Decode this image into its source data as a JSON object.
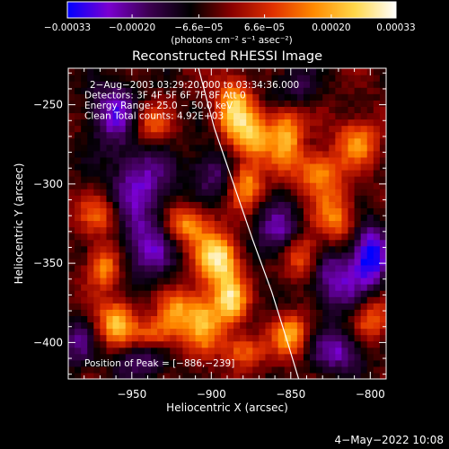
{
  "chart_data": {
    "type": "heatmap",
    "title": "Reconstructed RHESSI Image",
    "xlabel": "Heliocentric X (arcsec)",
    "ylabel": "Heliocentric Y (arcsec)",
    "xlim": [
      -990,
      -790
    ],
    "ylim": [
      -423,
      -227
    ],
    "x_ticks": [
      -950,
      -900,
      -850,
      -800
    ],
    "x_tick_labels": [
      "−950",
      "−900",
      "−850",
      "−800"
    ],
    "y_ticks": [
      -250,
      -300,
      -350,
      -400
    ],
    "y_tick_labels": [
      "−250",
      "−300",
      "−350",
      "−400"
    ],
    "colorbar": {
      "range": [
        -0.00033,
        0.00033
      ],
      "ticks": [
        -0.00033,
        -0.0002,
        -6.6e-05,
        6.6e-05,
        0.0002,
        0.00033
      ],
      "tick_labels": [
        "−0.00033",
        "−0.00020",
        "−6.6e−05",
        "6.6e−05",
        "0.00020",
        "0.00033"
      ],
      "unit_label": "(photons cm⁻² s⁻¹ asec⁻²)",
      "colors": [
        "#0000ff",
        "#7a00d0",
        "#3c0050",
        "#000000",
        "#8a0000",
        "#e03000",
        "#ff8a00",
        "#ffd84a",
        "#ffffff"
      ]
    },
    "annotations": [
      "2−Aug−2003 03:29:20.000 to 03:34:36.000",
      "Detectors: 3F 4F 5F 6F 7F 8F  Att 0",
      "Energy Range: 25.0 − 50.0 keV",
      "Clean     Total counts: 4.92E+03"
    ],
    "peak_label": "Position of Peak = [−886,−239]",
    "peak": [
      -886,
      -239
    ],
    "limb_curve": {
      "x": [
        -908,
        -898,
        -886,
        -874,
        -862,
        -852,
        -845
      ],
      "y": [
        -227,
        -265,
        -300,
        -335,
        -368,
        -400,
        -423
      ]
    },
    "sources": [
      {
        "x": -896,
        "y": -346,
        "amp": 1.0,
        "sx": 9,
        "sy": 10
      },
      {
        "x": -888,
        "y": -372,
        "amp": 0.85,
        "sx": 7,
        "sy": 12
      },
      {
        "x": -905,
        "y": -385,
        "amp": 0.75,
        "sx": 8,
        "sy": 14
      },
      {
        "x": -915,
        "y": -325,
        "amp": 0.7,
        "sx": 10,
        "sy": 9
      },
      {
        "x": -886,
        "y": -252,
        "amp": 0.8,
        "sx": 8,
        "sy": 14
      },
      {
        "x": -878,
        "y": -300,
        "amp": 0.65,
        "sx": 7,
        "sy": 10
      },
      {
        "x": -872,
        "y": -270,
        "amp": 0.75,
        "sx": 9,
        "sy": 11
      },
      {
        "x": -852,
        "y": -268,
        "amp": 0.7,
        "sx": 7,
        "sy": 16
      },
      {
        "x": -832,
        "y": -292,
        "amp": 0.7,
        "sx": 9,
        "sy": 9
      },
      {
        "x": -822,
        "y": -320,
        "amp": 0.6,
        "sx": 9,
        "sy": 12
      },
      {
        "x": -808,
        "y": -273,
        "amp": 0.65,
        "sx": 9,
        "sy": 10
      },
      {
        "x": -843,
        "y": -345,
        "amp": 0.6,
        "sx": 8,
        "sy": 10
      },
      {
        "x": -850,
        "y": -395,
        "amp": 0.7,
        "sx": 8,
        "sy": 9
      },
      {
        "x": -968,
        "y": -352,
        "amp": 0.65,
        "sx": 7,
        "sy": 9
      },
      {
        "x": -960,
        "y": -387,
        "amp": 0.8,
        "sx": 8,
        "sy": 10
      },
      {
        "x": -935,
        "y": -395,
        "amp": 0.55,
        "sx": 10,
        "sy": 8
      },
      {
        "x": -940,
        "y": -262,
        "amp": 0.55,
        "sx": 9,
        "sy": 10
      },
      {
        "x": -970,
        "y": -320,
        "amp": 0.5,
        "sx": 9,
        "sy": 9
      },
      {
        "x": -922,
        "y": -380,
        "amp": 0.6,
        "sx": 7,
        "sy": 9
      },
      {
        "x": -880,
        "y": -405,
        "amp": 0.55,
        "sx": 9,
        "sy": 7
      },
      {
        "x": -800,
        "y": -385,
        "amp": 0.5,
        "sx": 8,
        "sy": 10
      },
      {
        "x": -945,
        "y": -300,
        "amp": -0.6,
        "sx": 14,
        "sy": 18
      },
      {
        "x": -960,
        "y": -255,
        "amp": -0.65,
        "sx": 12,
        "sy": 14
      },
      {
        "x": -940,
        "y": -340,
        "amp": -0.55,
        "sx": 12,
        "sy": 14
      },
      {
        "x": -900,
        "y": -292,
        "amp": -0.45,
        "sx": 10,
        "sy": 12
      },
      {
        "x": -858,
        "y": -330,
        "amp": -0.6,
        "sx": 10,
        "sy": 12
      },
      {
        "x": -822,
        "y": -360,
        "amp": -0.6,
        "sx": 12,
        "sy": 14
      },
      {
        "x": -800,
        "y": -345,
        "amp": -0.9,
        "sx": 8,
        "sy": 14
      },
      {
        "x": -820,
        "y": -405,
        "amp": -0.6,
        "sx": 12,
        "sy": 10
      },
      {
        "x": -945,
        "y": -410,
        "amp": -0.5,
        "sx": 12,
        "sy": 8
      },
      {
        "x": -850,
        "y": -240,
        "amp": -0.45,
        "sx": 10,
        "sy": 10
      },
      {
        "x": -985,
        "y": -400,
        "amp": -0.4,
        "sx": 8,
        "sy": 12
      }
    ]
  },
  "footer_date": "4−May−2022 10:08"
}
